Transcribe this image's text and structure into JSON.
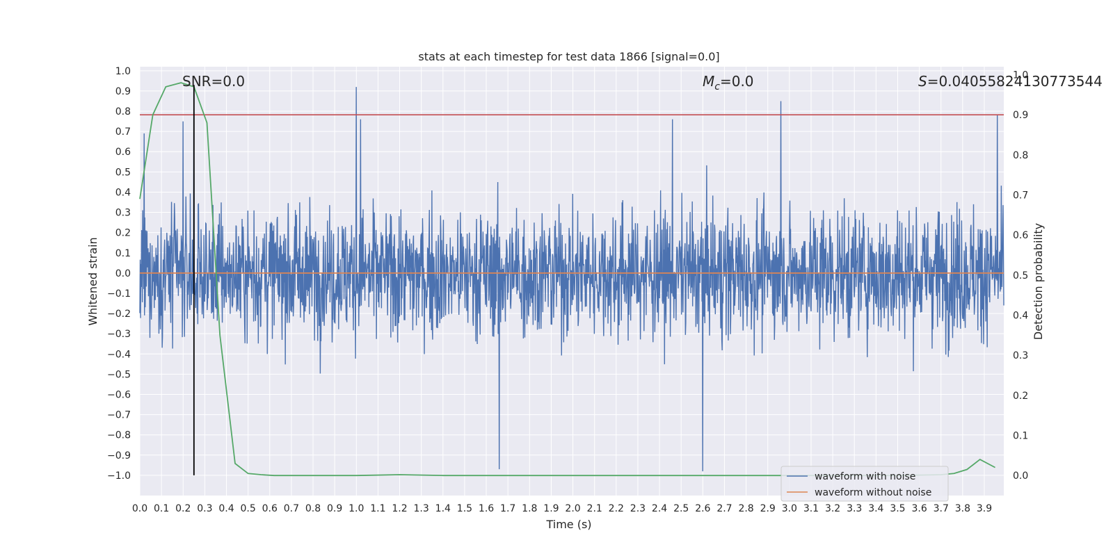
{
  "chart_data": {
    "type": "line",
    "title": "stats at each timestep for test data 1866 [signal=0.0]",
    "xlabel": "Time (s)",
    "ylabel": "Whitened strain",
    "y2label": "Detection probability",
    "xlim": [
      0.0,
      3.99
    ],
    "ylim": [
      -1.1,
      1.02
    ],
    "y2lim": [
      -0.05,
      1.02
    ],
    "xticks": [
      "0.0",
      "0.1",
      "0.2",
      "0.3",
      "0.4",
      "0.5",
      "0.6",
      "0.7",
      "0.8",
      "0.9",
      "1.0",
      "1.1",
      "1.2",
      "1.3",
      "1.4",
      "1.5",
      "1.6",
      "1.7",
      "1.8",
      "1.9",
      "2.0",
      "2.1",
      "2.2",
      "2.3",
      "2.4",
      "2.5",
      "2.6",
      "2.7",
      "2.8",
      "2.9",
      "3.0",
      "3.1",
      "3.2",
      "3.3",
      "3.4",
      "3.5",
      "3.6",
      "3.7",
      "3.8",
      "3.9"
    ],
    "yticks": [
      "1.0",
      "0.9",
      "0.8",
      "0.7",
      "0.6",
      "0.5",
      "0.4",
      "0.3",
      "0.2",
      "0.1",
      "0.0",
      "−0.1",
      "−0.2",
      "−0.3",
      "−0.4",
      "−0.5",
      "−0.6",
      "−0.7",
      "−0.8",
      "−0.9",
      "−1.0"
    ],
    "y2ticks": [
      "1.0",
      "0.9",
      "0.8",
      "0.7",
      "0.6",
      "0.5",
      "0.4",
      "0.3",
      "0.2",
      "0.1",
      "0.0"
    ],
    "annotations": {
      "snr": "SNR=0.0",
      "mc_symbol": "M",
      "mc_sub": "c",
      "mc_value": "=0.0",
      "s_symbol": "S",
      "s_value": "=0.04055824130773544"
    },
    "threshold_line": {
      "axis": "y2",
      "value": 0.9
    },
    "vertical_line": {
      "x": 0.25
    },
    "series": [
      {
        "name": "waveform with noise",
        "axis": "y",
        "description_kind": "dense noise",
        "x_range": [
          0.0,
          3.99
        ],
        "typical_range": [
          -0.45,
          0.45
        ],
        "peak_x": [
          0.02,
          0.2,
          0.25,
          1.0,
          1.02,
          1.66,
          2.46,
          2.6,
          2.96,
          3.96
        ],
        "peak_y": [
          0.69,
          0.75,
          0.77,
          0.92,
          0.76,
          -0.97,
          0.76,
          -0.98,
          0.85,
          0.78
        ]
      },
      {
        "name": "waveform without noise",
        "axis": "y",
        "x": [
          0.0,
          3.99
        ],
        "y": [
          0.0,
          0.0
        ]
      },
      {
        "name": "",
        "axis": "y2",
        "x": [
          0.0,
          0.06,
          0.12,
          0.19,
          0.25,
          0.31,
          0.37,
          0.44,
          0.5,
          0.56,
          0.62,
          0.75,
          1.0,
          1.2,
          1.4,
          1.6,
          2.0,
          2.5,
          3.0,
          3.5,
          3.7,
          3.76,
          3.82,
          3.88,
          3.95
        ],
        "y": [
          0.69,
          0.9,
          0.97,
          0.98,
          0.97,
          0.88,
          0.35,
          0.03,
          0.005,
          0.002,
          0.0,
          0.0,
          0.0,
          0.002,
          0.0,
          0.0,
          0.0,
          0.0,
          0.0,
          0.0,
          0.002,
          0.005,
          0.015,
          0.04,
          0.02
        ]
      }
    ],
    "legend": {
      "placement": "lower-right",
      "entries": [
        "waveform with noise",
        "waveform without noise"
      ]
    },
    "grid": true,
    "colors": {
      "plot_bg": "#eaeaf2",
      "grid": "#ffffff",
      "noise": "#4c72b0",
      "clean": "#dd8452",
      "prob": "#55a868",
      "threshold": "#c44e52",
      "vline": "#000000"
    }
  }
}
